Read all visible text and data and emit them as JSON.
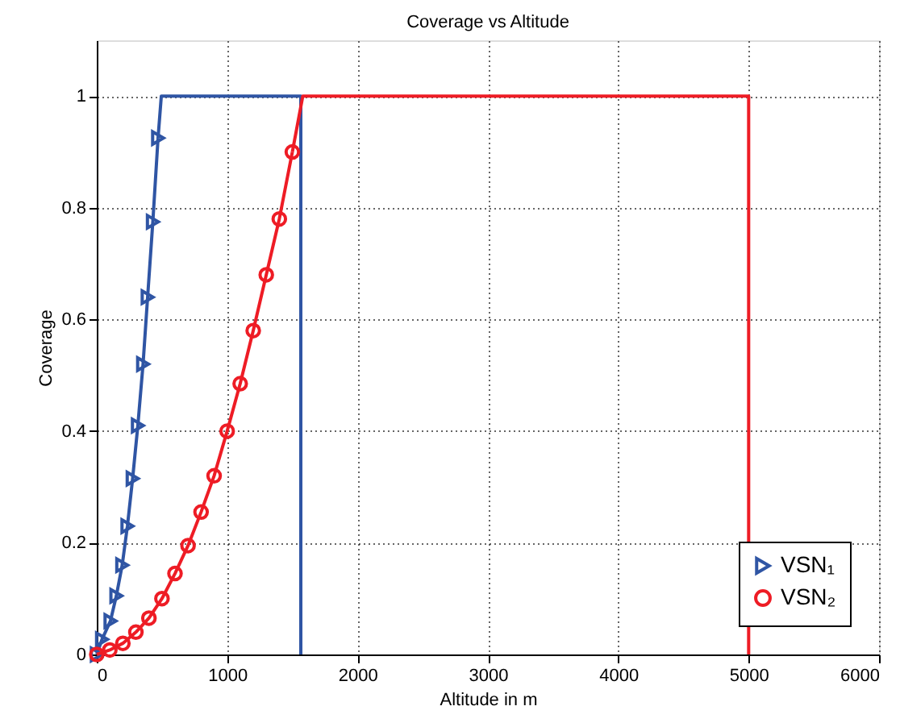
{
  "chart_data": {
    "type": "line",
    "title": "Coverage vs Altitude",
    "xlabel": "Altitude in m",
    "ylabel": "Coverage",
    "xlim": [
      0,
      6000
    ],
    "xticks": [
      0,
      1000,
      2000,
      3000,
      4000,
      5000,
      6000
    ],
    "ylim": [
      0,
      1.1
    ],
    "yticks": [
      0,
      0.2,
      0.4,
      0.6,
      0.8,
      1
    ],
    "grid": true,
    "legend": "bottom right",
    "line_style": "solid",
    "series": [
      {
        "name": "VSN₁",
        "color": "#2f55a4",
        "marker": "triangle",
        "x": [
          0,
          40,
          105,
          150,
          195,
          235,
          275,
          315,
          355,
          390,
          430,
          470
        ],
        "values": [
          0,
          0.027,
          0.06,
          0.105,
          0.16,
          0.23,
          0.315,
          0.41,
          0.52,
          0.64,
          0.775,
          0.925
        ]
      },
      {
        "color": "#2f55a4",
        "marker": "none",
        "x": [
          470,
          495,
          1565,
          1565
        ],
        "values": [
          0.925,
          1,
          1,
          0
        ]
      },
      {
        "name": "VSN₂",
        "color": "#ee1c25",
        "marker": "circle",
        "x": [
          0,
          100,
          200,
          300,
          400,
          500,
          600,
          700,
          800,
          900,
          1000,
          1100,
          1200,
          1300,
          1400,
          1500
        ],
        "values": [
          0,
          0.008,
          0.02,
          0.04,
          0.065,
          0.1,
          0.145,
          0.195,
          0.255,
          0.32,
          0.4,
          0.485,
          0.58,
          0.68,
          0.78,
          0.9
        ]
      },
      {
        "color": "#ee1c25",
        "marker": "none",
        "x": [
          1500,
          1580,
          5000,
          5000
        ],
        "values": [
          0.9,
          1,
          1,
          0
        ]
      }
    ]
  }
}
